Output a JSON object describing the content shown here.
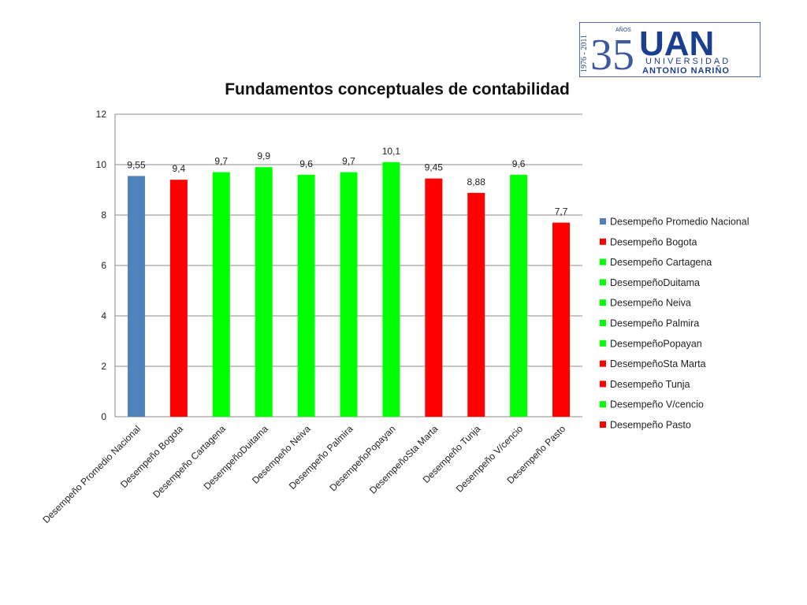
{
  "logo": {
    "years_vertical": "1976 - 2011",
    "number": "35",
    "anos": "AÑOS",
    "acronym": "UAN",
    "line1": "UNIVERSIDAD",
    "line2": "ANTONIO NARIÑO"
  },
  "colors": {
    "blue": "#4f81bd",
    "red": "#ff0000",
    "green": "#00ff00",
    "grid": "#888888",
    "logo_blue": "#1b3f8f"
  },
  "chart_data": {
    "type": "bar",
    "title": "Fundamentos conceptuales de contabilidad",
    "xlabel": "",
    "ylabel": "",
    "ylim": [
      0,
      12
    ],
    "yticks": [
      "0",
      "2",
      "4",
      "6",
      "8",
      "10",
      "12"
    ],
    "grid": true,
    "legend_position": "right",
    "categories": [
      "Desempeño Promedio Nacional",
      "Desempeño Bogota",
      "Desempeño Cartagena",
      "DesempeñoDuitama",
      "Desempeño Neiva",
      "Desempeño Palmira",
      "DesempeñoPopayan",
      "DesempeñoSta Marta",
      "Desempeño Tunja",
      "Desempeño V/cencio",
      "Desempeño Pasto"
    ],
    "values": [
      9.55,
      9.4,
      9.7,
      9.9,
      9.6,
      9.7,
      10.1,
      9.45,
      8.88,
      9.6,
      7.7
    ],
    "value_labels": [
      "9,55",
      "9,4",
      "9,7",
      "9,9",
      "9,6",
      "9,7",
      "10,1",
      "9,45",
      "8,88",
      "9,6",
      "7,7"
    ],
    "bar_colors": [
      "#4f81bd",
      "#ff0000",
      "#00ff00",
      "#00ff00",
      "#00ff00",
      "#00ff00",
      "#00ff00",
      "#ff0000",
      "#ff0000",
      "#00ff00",
      "#ff0000"
    ],
    "legend": [
      "Desempeño Promedio Nacional",
      "Desempeño Bogota",
      "Desempeño Cartagena",
      "DesempeñoDuitama",
      "Desempeño Neiva",
      "Desempeño Palmira",
      "DesempeñoPopayan",
      "DesempeñoSta Marta",
      "Desempeño Tunja",
      "Desempeño V/cencio",
      "Desempeño Pasto"
    ]
  }
}
